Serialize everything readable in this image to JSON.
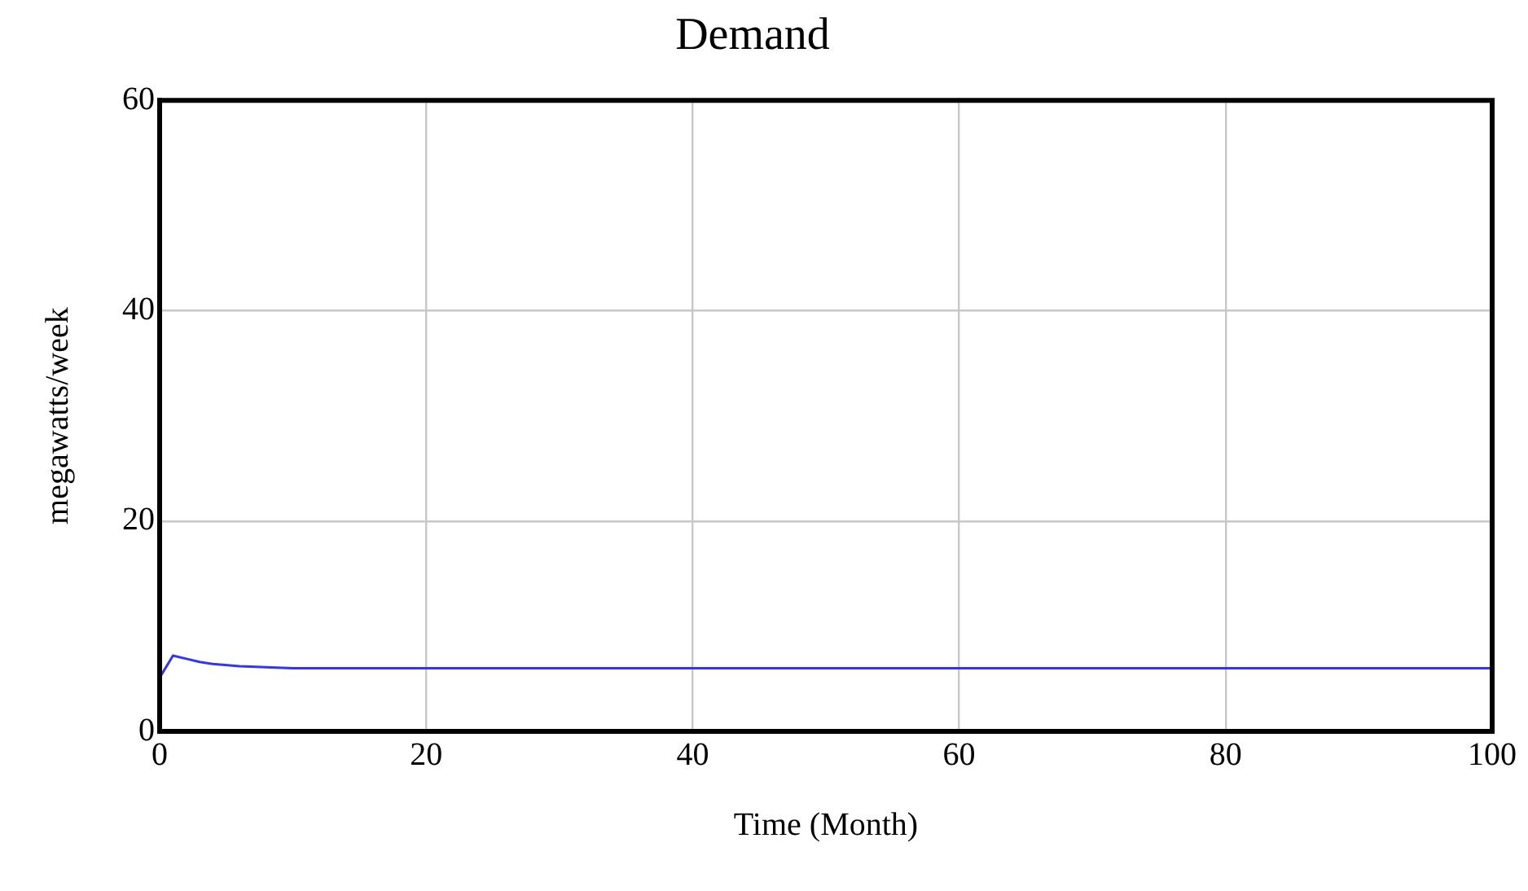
{
  "chart_data": {
    "type": "line",
    "title": "Demand",
    "xlabel": "Time (Month)",
    "ylabel": "megawatts/week",
    "x": [
      0,
      1,
      2,
      3,
      4,
      6,
      8,
      10,
      20,
      40,
      60,
      80,
      100
    ],
    "series": [
      {
        "color": "#3333ff",
        "values": [
          5.1,
          7.2,
          6.9,
          6.6,
          6.4,
          6.2,
          6.1,
          6.0,
          6.0,
          6.0,
          6.0,
          6.0,
          6.0
        ]
      }
    ],
    "xlim": [
      0,
      100
    ],
    "xticks": [
      0,
      20,
      40,
      60,
      80,
      100
    ],
    "ylim": [
      0,
      60
    ],
    "yticks": [
      0,
      20,
      40,
      60
    ],
    "grid": true,
    "legend": false,
    "marker": "none",
    "line_style": "solid"
  }
}
